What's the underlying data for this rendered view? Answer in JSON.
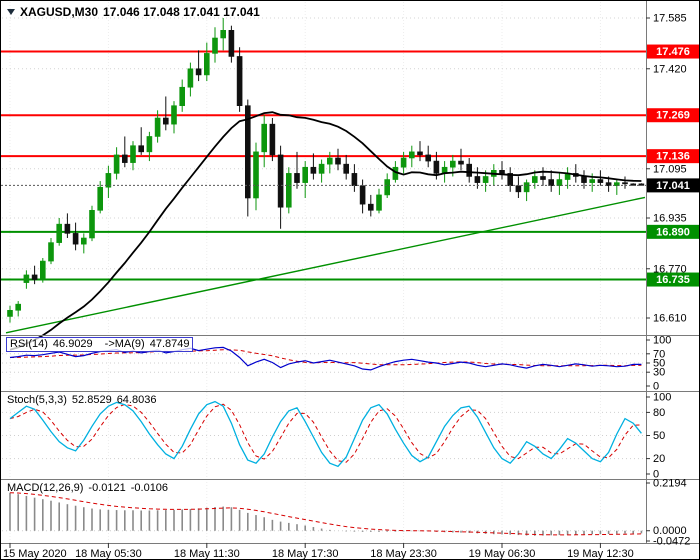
{
  "window": {
    "title": {
      "symbol": "XAGUSD,M30",
      "quotes": "17.046 17.048 17.041 17.041"
    }
  },
  "chart_data": {
    "type": "candlestick",
    "symbol": "XAGUSD",
    "timeframe": "M30",
    "legend_ohlc": "17.046 17.048 17.041 17.041",
    "x_axis": {
      "tick_indices": [
        0,
        12,
        24,
        36,
        48,
        60,
        72
      ],
      "tick_labels": [
        "15 May 2020",
        "18 May 05:30",
        "18 May 11:30",
        "18 May 17:30",
        "18 May 23:30",
        "19 May 06:30",
        "19 May 12:30"
      ]
    },
    "main": {
      "y_range": [
        16.571,
        17.624
      ],
      "y_ticks": [
        {
          "value": 17.585,
          "label": "17.585"
        },
        {
          "value": 17.42,
          "label": "17.420"
        },
        {
          "value": 17.095,
          "label": "17.095"
        },
        {
          "value": 16.935,
          "label": "16.935"
        },
        {
          "value": 16.77,
          "label": "16.770"
        },
        {
          "value": 16.61,
          "label": "16.610"
        }
      ],
      "levels": [
        {
          "value": 17.476,
          "label": "17.476",
          "color": "#fe0000",
          "kind": "resistance"
        },
        {
          "value": 17.269,
          "label": "17.269",
          "color": "#fe0000",
          "kind": "resistance"
        },
        {
          "value": 17.136,
          "label": "17.136",
          "color": "#fe0000",
          "kind": "resistance"
        },
        {
          "value": 16.89,
          "label": "16.890",
          "color": "#009000",
          "kind": "support"
        },
        {
          "value": 16.735,
          "label": "16.735",
          "color": "#009000",
          "kind": "support"
        }
      ],
      "current_price": {
        "value": 17.041,
        "label": "17.041",
        "badge_color": "#000000"
      },
      "trendline": {
        "from_price": 16.562,
        "to_price": 17.002,
        "color": "#009000"
      },
      "ma": {
        "period": 20,
        "seed": 16.5,
        "color": "#000000"
      },
      "candle_colors": {
        "up": "#0d960d",
        "down": "#101010"
      },
      "candles": [
        [
          16.615,
          16.65,
          16.595,
          16.635
        ],
        [
          16.635,
          16.665,
          16.615,
          16.655
        ],
        [
          16.725,
          16.765,
          16.705,
          16.75
        ],
        [
          16.75,
          16.78,
          16.72,
          16.735
        ],
        [
          16.735,
          16.805,
          16.725,
          16.795
        ],
        [
          16.795,
          16.87,
          16.785,
          16.855
        ],
        [
          16.855,
          16.935,
          16.845,
          16.915
        ],
        [
          16.915,
          16.95,
          16.87,
          16.885
        ],
        [
          16.885,
          16.92,
          16.83,
          16.85
        ],
        [
          16.85,
          16.885,
          16.82,
          16.87
        ],
        [
          16.87,
          16.975,
          16.86,
          16.96
        ],
        [
          16.96,
          17.055,
          16.95,
          17.035
        ],
        [
          17.035,
          17.105,
          17.0,
          17.08
        ],
        [
          17.08,
          17.165,
          17.06,
          17.14
        ],
        [
          17.14,
          17.2,
          17.1,
          17.115
        ],
        [
          17.115,
          17.185,
          17.09,
          17.17
        ],
        [
          17.17,
          17.23,
          17.14,
          17.15
        ],
        [
          17.15,
          17.215,
          17.12,
          17.2
        ],
        [
          17.2,
          17.285,
          17.18,
          17.26
        ],
        [
          17.26,
          17.33,
          17.22,
          17.24
        ],
        [
          17.24,
          17.315,
          17.21,
          17.3
        ],
        [
          17.3,
          17.385,
          17.28,
          17.36
        ],
        [
          17.36,
          17.44,
          17.33,
          17.42
        ],
        [
          17.42,
          17.48,
          17.38,
          17.4
        ],
        [
          17.4,
          17.505,
          17.38,
          17.47
        ],
        [
          17.47,
          17.555,
          17.44,
          17.52
        ],
        [
          17.52,
          17.585,
          17.48,
          17.545
        ],
        [
          17.545,
          17.56,
          17.44,
          17.46
        ],
        [
          17.46,
          17.49,
          17.28,
          17.3
        ],
        [
          17.3,
          17.32,
          16.94,
          17.0
        ],
        [
          17.0,
          17.18,
          16.96,
          17.15
        ],
        [
          17.15,
          17.27,
          17.1,
          17.24
        ],
        [
          17.24,
          17.26,
          17.12,
          17.14
        ],
        [
          17.14,
          17.17,
          16.9,
          16.97
        ],
        [
          16.97,
          17.1,
          16.95,
          17.08
        ],
        [
          17.08,
          17.15,
          17.03,
          17.05
        ],
        [
          17.05,
          17.12,
          17.0,
          17.1
        ],
        [
          17.1,
          17.145,
          17.06,
          17.08
        ],
        [
          17.08,
          17.125,
          17.05,
          17.11
        ],
        [
          17.11,
          17.15,
          17.08,
          17.13
        ],
        [
          17.13,
          17.16,
          17.09,
          17.11
        ],
        [
          17.11,
          17.14,
          17.06,
          17.08
        ],
        [
          17.08,
          17.11,
          17.02,
          17.04
        ],
        [
          17.04,
          17.06,
          16.95,
          16.98
        ],
        [
          16.98,
          17.01,
          16.94,
          16.96
        ],
        [
          16.96,
          17.03,
          16.95,
          17.01
        ],
        [
          17.01,
          17.08,
          17.0,
          17.06
        ],
        [
          17.06,
          17.12,
          17.05,
          17.1
        ],
        [
          17.1,
          17.15,
          17.08,
          17.13
        ],
        [
          17.13,
          17.17,
          17.1,
          17.15
        ],
        [
          17.15,
          17.185,
          17.12,
          17.14
        ],
        [
          17.14,
          17.17,
          17.1,
          17.12
        ],
        [
          17.12,
          17.15,
          17.06,
          17.08
        ],
        [
          17.08,
          17.12,
          17.05,
          17.1
        ],
        [
          17.1,
          17.14,
          17.07,
          17.12
        ],
        [
          17.12,
          17.16,
          17.09,
          17.11
        ],
        [
          17.11,
          17.13,
          17.05,
          17.07
        ],
        [
          17.07,
          17.1,
          17.03,
          17.05
        ],
        [
          17.05,
          17.09,
          17.02,
          17.07
        ],
        [
          17.07,
          17.11,
          17.04,
          17.09
        ],
        [
          17.09,
          17.12,
          17.06,
          17.08
        ],
        [
          17.08,
          17.1,
          17.02,
          17.04
        ],
        [
          17.04,
          17.07,
          17.0,
          17.02
        ],
        [
          17.02,
          17.06,
          16.99,
          17.05
        ],
        [
          17.05,
          17.09,
          17.03,
          17.07
        ],
        [
          17.07,
          17.1,
          17.04,
          17.06
        ],
        [
          17.06,
          17.09,
          17.02,
          17.04
        ],
        [
          17.04,
          17.08,
          17.01,
          17.06
        ],
        [
          17.06,
          17.1,
          17.03,
          17.08
        ],
        [
          17.08,
          17.11,
          17.05,
          17.07
        ],
        [
          17.07,
          17.09,
          17.03,
          17.05
        ],
        [
          17.05,
          17.08,
          17.02,
          17.06
        ],
        [
          17.06,
          17.09,
          17.04,
          17.05
        ],
        [
          17.05,
          17.07,
          17.02,
          17.04
        ],
        [
          17.04,
          17.06,
          17.01,
          17.05
        ],
        [
          17.05,
          17.07,
          17.03,
          17.046
        ],
        [
          17.046,
          17.048,
          17.041,
          17.041
        ],
        [
          17.046,
          17.048,
          17.041,
          17.041
        ]
      ]
    },
    "rsi": {
      "header": {
        "name": "RSI(14)",
        "value": "46.9029",
        "ma_name": "->MA(9)",
        "ma_value": "47.8749"
      },
      "ticks": [
        {
          "value": 100,
          "label": "100"
        },
        {
          "value": 70,
          "label": "70"
        },
        {
          "value": 50,
          "label": "50"
        },
        {
          "value": 30,
          "label": "30"
        },
        {
          "value": 0,
          "label": "0"
        }
      ],
      "grid_levels": [
        70,
        50,
        30
      ],
      "line_color": "#0000cc",
      "ma_color": "#d60000",
      "ma_period": 9,
      "values": [
        62,
        64,
        67,
        66,
        68,
        71,
        74,
        69,
        64,
        66,
        71,
        75,
        77,
        79,
        73,
        76,
        72,
        75,
        78,
        72,
        75,
        79,
        82,
        77,
        80,
        83,
        84,
        76,
        62,
        44,
        52,
        58,
        51,
        40,
        48,
        52,
        55,
        50,
        53,
        56,
        52,
        48,
        44,
        37,
        35,
        42,
        48,
        53,
        56,
        58,
        55,
        52,
        50,
        46,
        49,
        52,
        50,
        45,
        42,
        45,
        48,
        46,
        42,
        39,
        44,
        47,
        45,
        42,
        45,
        48,
        46,
        43,
        45,
        44,
        42,
        43,
        47,
        46.9
      ]
    },
    "stoch": {
      "header": {
        "name": "Stoch(5,3,3)",
        "value": "52.8529",
        "signal_value": "64.8036"
      },
      "ticks": [
        {
          "value": 100,
          "label": "100"
        },
        {
          "value": 80,
          "label": "80"
        },
        {
          "value": 50,
          "label": "50"
        },
        {
          "value": 20,
          "label": "20"
        },
        {
          "value": 0,
          "label": "0"
        }
      ],
      "grid_levels": [
        80,
        50,
        20
      ],
      "k_color": "#00b0e0",
      "d_color": "#d60000",
      "d_period": 3,
      "values": [
        72,
        80,
        88,
        84,
        70,
        55,
        42,
        34,
        30,
        44,
        62,
        78,
        88,
        93,
        90,
        82,
        68,
        52,
        38,
        26,
        20,
        36,
        58,
        78,
        90,
        94,
        88,
        66,
        38,
        18,
        14,
        26,
        48,
        68,
        82,
        86,
        68,
        48,
        28,
        14,
        10,
        22,
        46,
        70,
        86,
        90,
        78,
        58,
        40,
        24,
        16,
        22,
        42,
        62,
        76,
        86,
        88,
        74,
        54,
        34,
        20,
        14,
        26,
        42,
        36,
        26,
        20,
        32,
        46,
        40,
        30,
        20,
        16,
        28,
        52,
        72,
        66,
        52.85
      ]
    },
    "macd": {
      "header": {
        "name": "MACD(12,26,9)",
        "value": "-0.0121",
        "signal_value": "-0.0106"
      },
      "ticks": [
        {
          "value": 0.2194,
          "label": "0.2194"
        },
        {
          "value": 0,
          "label": "0.0000"
        },
        {
          "value": -0.0472,
          "label": "-0.0472"
        }
      ],
      "range": [
        -0.0472,
        0.2194
      ],
      "bar_color": "#8a8a8a",
      "signal_color": "#d60000",
      "signal_period": 9,
      "values": [
        0.175,
        0.168,
        0.16,
        0.152,
        0.145,
        0.138,
        0.13,
        0.122,
        0.115,
        0.108,
        0.102,
        0.098,
        0.096,
        0.095,
        0.094,
        0.094,
        0.093,
        0.093,
        0.094,
        0.095,
        0.096,
        0.098,
        0.1,
        0.103,
        0.106,
        0.109,
        0.111,
        0.108,
        0.096,
        0.082,
        0.072,
        0.062,
        0.05,
        0.042,
        0.036,
        0.03,
        0.024,
        0.017,
        0.01,
        0.004,
        0,
        -0.003,
        -0.004,
        -0.005,
        -0.005,
        -0.005,
        -0.004,
        -0.004,
        -0.003,
        -0.002,
        -0.002,
        -0.003,
        -0.005,
        -0.007,
        -0.008,
        -0.009,
        -0.01,
        -0.012,
        -0.014,
        -0.016,
        -0.017,
        -0.018,
        -0.02,
        -0.022,
        -0.023,
        -0.022,
        -0.021,
        -0.02,
        -0.019,
        -0.018,
        -0.017,
        -0.016,
        -0.016,
        -0.015,
        -0.014,
        -0.013,
        -0.0125,
        -0.0121
      ]
    }
  }
}
